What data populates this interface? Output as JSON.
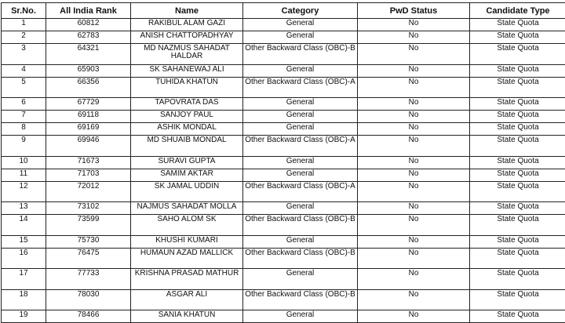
{
  "headers": [
    "Sr.No.",
    "All India Rank",
    "Name",
    "Category",
    "PwD Status",
    "Candidate Type"
  ],
  "rows": [
    [
      "1",
      "60812",
      "RAKIBUL ALAM GAZI",
      "General",
      "No",
      "State Quota"
    ],
    [
      "2",
      "62783",
      "ANISH CHATTOPADHYAY",
      "General",
      "No",
      "State Quota"
    ],
    [
      "3",
      "64321",
      "MD NAZMUS SAHADAT HALDAR",
      "Other Backward Class (OBC)-B",
      "No",
      "State Quota"
    ],
    [
      "4",
      "65903",
      "SK SAHANEWAJ ALI",
      "General",
      "No",
      "State Quota"
    ],
    [
      "5",
      "66356",
      "TUHIDA KHATUN",
      "Other Backward Class (OBC)-A",
      "No",
      "State Quota"
    ],
    [
      "6",
      "67729",
      "TAPOVRATA DAS",
      "General",
      "No",
      "State Quota"
    ],
    [
      "7",
      "69118",
      "SANJOY PAUL",
      "General",
      "No",
      "State Quota"
    ],
    [
      "8",
      "69169",
      "ASHIK MONDAL",
      "General",
      "No",
      "State Quota"
    ],
    [
      "9",
      "69946",
      "MD SHUAIB MONDAL",
      "Other Backward Class (OBC)-A",
      "No",
      "State Quota"
    ],
    [
      "10",
      "71673",
      "SURAVI GUPTA",
      "General",
      "No",
      "State Quota"
    ],
    [
      "11",
      "71703",
      "SAMIM AKTAR",
      "General",
      "No",
      "State Quota"
    ],
    [
      "12",
      "72012",
      "SK JAMAL UDDIN",
      "Other Backward Class (OBC)-A",
      "No",
      "State Quota"
    ],
    [
      "13",
      "73102",
      "NAJMUS SAHADAT MOLLA",
      "General",
      "No",
      "State Quota"
    ],
    [
      "14",
      "73599",
      "SAHO ALOM SK",
      "Other Backward Class (OBC)-B",
      "No",
      "State Quota"
    ],
    [
      "15",
      "75730",
      "KHUSHI KUMARI",
      "General",
      "No",
      "State Quota"
    ],
    [
      "16",
      "76475",
      "HUMAUN AZAD MALLICK",
      "Other Backward Class (OBC)-B",
      "No",
      "State Quota"
    ],
    [
      "17",
      "77733",
      "KRISHNA PRASAD MATHUR",
      "General",
      "No",
      "State Quota"
    ],
    [
      "18",
      "78030",
      "ASGAR ALI",
      "Other Backward Class (OBC)-B",
      "No",
      "State Quota"
    ],
    [
      "19",
      "78466",
      "SANIA KHATUN",
      "General",
      "No",
      "State Quota"
    ]
  ]
}
